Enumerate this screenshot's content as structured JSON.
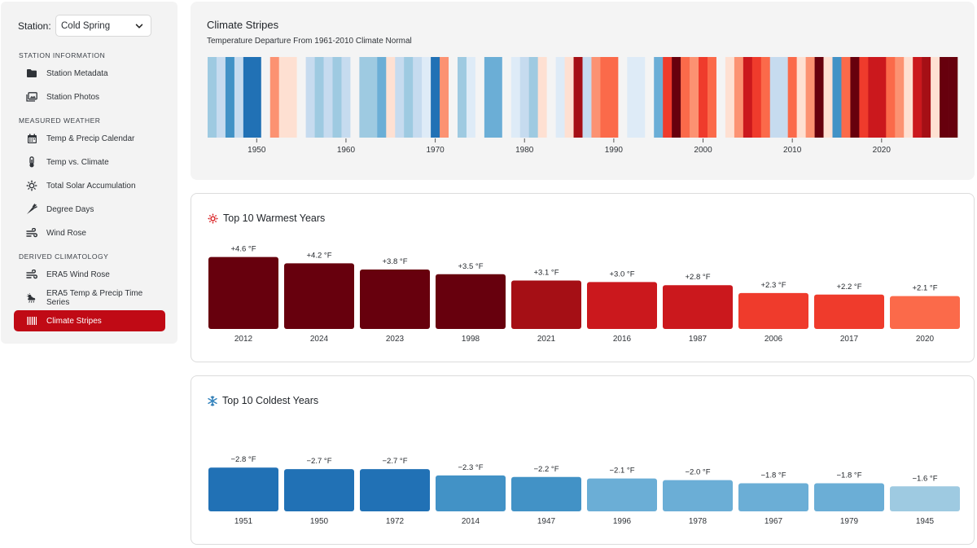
{
  "sidebar": {
    "station_label": "Station:",
    "station_value": "Cold Spring",
    "sections": [
      {
        "header": "STATION INFORMATION",
        "items": [
          {
            "label": "Station Metadata",
            "icon": "folder-icon"
          },
          {
            "label": "Station Photos",
            "icon": "photos-icon"
          }
        ]
      },
      {
        "header": "MEASURED WEATHER",
        "items": [
          {
            "label": "Temp & Precip Calendar",
            "icon": "calendar-icon"
          },
          {
            "label": "Temp vs. Climate",
            "icon": "thermometer-icon"
          },
          {
            "label": "Total Solar Accumulation",
            "icon": "sun-icon"
          },
          {
            "label": "Degree Days",
            "icon": "carrot-icon"
          },
          {
            "label": "Wind Rose",
            "icon": "wind-icon"
          }
        ]
      },
      {
        "header": "DERIVED CLIMATOLOGY",
        "items": [
          {
            "label": "ERA5 Wind Rose",
            "icon": "wind-icon"
          },
          {
            "label": "ERA5 Temp & Precip Time Series",
            "icon": "cloud-sun-rain-icon"
          },
          {
            "label": "Climate Stripes",
            "icon": "stripes-icon",
            "active": true
          }
        ]
      }
    ]
  },
  "stripes": {
    "title": "Climate Stripes",
    "subtitle": "Temperature Departure From 1961-2010 Climate Normal",
    "colors": {
      "gap": "#f4f4f4",
      "d3": "#67000d",
      "d2": "#a50f15",
      "d1": "#cb181d",
      "d0": "#ef3b2c",
      "w3": "#fb6a4a",
      "w2": "#fc9272",
      "w1": "#fee0d2",
      "c1": "#deebf7",
      "c2": "#c6dbef",
      "c3": "#9ecae1",
      "c4": "#6baed6",
      "c5": "#4292c6",
      "c6": "#2171b5"
    }
  },
  "chart_data": [
    {
      "type": "heatmap",
      "title": "Climate Stripes",
      "subtitle": "Temperature Departure From 1961-2010 Climate Normal",
      "x_ticks": [
        "1950",
        "1960",
        "1970",
        "1980",
        "1990",
        "2000",
        "2010",
        "2020"
      ],
      "start_year": 1945,
      "stripes": [
        "c3",
        "c2",
        "c5",
        "c2",
        "c6",
        "c6",
        "gap",
        "w2",
        "w1",
        "w1",
        "gap",
        "c2",
        "c3",
        "c2",
        "c3",
        "c2",
        "gap",
        "c3",
        "c3",
        "c4",
        "w1",
        "c2",
        "c3",
        "c2",
        "c1",
        "c6",
        "w2",
        "gap",
        "c3",
        "c1",
        "gap",
        "c4",
        "c4",
        "gap",
        "c1",
        "c2",
        "c3",
        "w1",
        "gap",
        "c1",
        "w1",
        "d2",
        "c2",
        "w2",
        "w3",
        "w3",
        "gap",
        "c1",
        "c1",
        "gap",
        "c4",
        "d0",
        "d3",
        "w3",
        "w2",
        "d0",
        "w3",
        "gap",
        "w1",
        "w2",
        "d1",
        "d0",
        "w3",
        "c2",
        "c2",
        "w3",
        "w1",
        "w2",
        "d3",
        "w1",
        "c5",
        "w3",
        "d3",
        "d0",
        "d1",
        "d1",
        "w3",
        "w2",
        "w1",
        "d1",
        "d2",
        "w1",
        "d3",
        "d3"
      ]
    },
    {
      "type": "bar",
      "title": "Top 10 Warmest Years",
      "categories": [
        "2012",
        "2024",
        "2023",
        "1998",
        "2021",
        "2016",
        "1987",
        "2006",
        "2017",
        "2020"
      ],
      "values": [
        4.6,
        4.2,
        3.8,
        3.5,
        3.1,
        3.0,
        2.8,
        2.3,
        2.2,
        2.1
      ],
      "labels": [
        "+4.6 °F",
        "+4.2 °F",
        "+3.8 °F",
        "+3.5 °F",
        "+3.1 °F",
        "+3.0 °F",
        "+2.8 °F",
        "+2.3 °F",
        "+2.2 °F",
        "+2.1 °F"
      ],
      "colors": [
        "#67000d",
        "#67000d",
        "#67000d",
        "#67000d",
        "#a50f15",
        "#cb181d",
        "#cb181d",
        "#ef3b2c",
        "#ef3b2c",
        "#fb6a4a"
      ]
    },
    {
      "type": "bar",
      "title": "Top 10 Coldest Years",
      "categories": [
        "1951",
        "1950",
        "1972",
        "2014",
        "1947",
        "1996",
        "1978",
        "1967",
        "1979",
        "1945"
      ],
      "values": [
        -2.8,
        -2.7,
        -2.7,
        -2.3,
        -2.2,
        -2.1,
        -2.0,
        -1.8,
        -1.8,
        -1.6
      ],
      "labels": [
        "−2.8 °F",
        "−2.7 °F",
        "−2.7 °F",
        "−2.3 °F",
        "−2.2 °F",
        "−2.1 °F",
        "−2.0 °F",
        "−1.8 °F",
        "−1.8 °F",
        "−1.6 °F"
      ],
      "colors": [
        "#2171b5",
        "#2171b5",
        "#2171b5",
        "#4292c6",
        "#4292c6",
        "#6baed6",
        "#6baed6",
        "#6baed6",
        "#6baed6",
        "#9ecae1"
      ]
    }
  ],
  "warm": {
    "title": "Top 10 Warmest Years",
    "icon": "sun-icon",
    "icon_color": "#d7191c"
  },
  "cold": {
    "title": "Top 10 Coldest Years",
    "icon": "snowflake-icon",
    "icon_color": "#3182bd"
  }
}
